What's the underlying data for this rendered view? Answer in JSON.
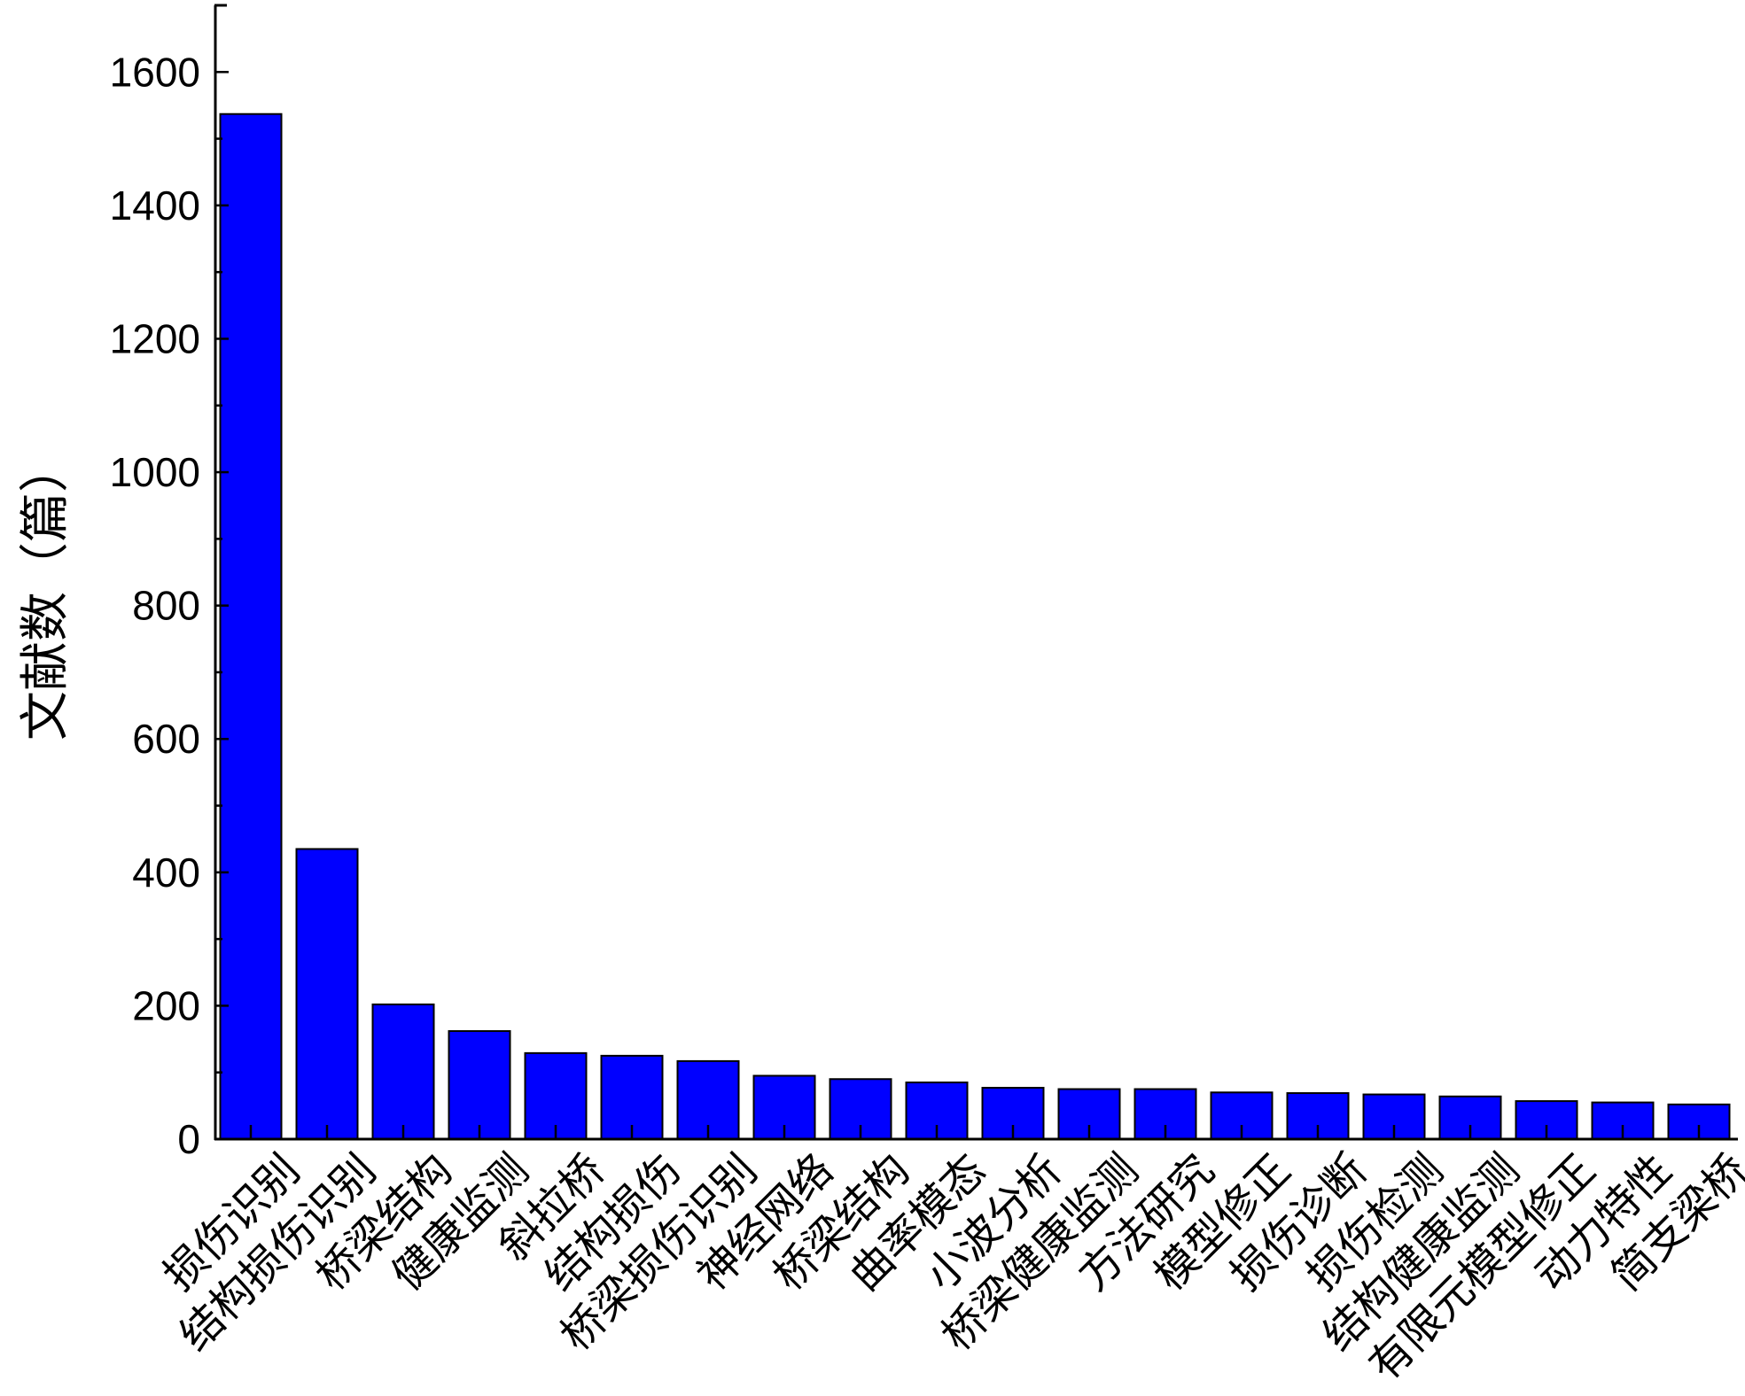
{
  "chart_data": {
    "type": "bar",
    "title": "",
    "xlabel": "",
    "ylabel": "文献数（篇）",
    "ylim": [
      0,
      1700
    ],
    "yticks": [
      0,
      200,
      400,
      600,
      800,
      1000,
      1200,
      1400,
      1600
    ],
    "grid": false,
    "legend": "none",
    "bar_color": "#0000ff",
    "categories": [
      "损伤识别",
      "结构损伤识别",
      "桥梁结构",
      "健康监测",
      "斜拉桥",
      "结构损伤",
      "桥梁损伤识别",
      "神经网络",
      "桥梁结构",
      "曲率模态",
      "小波分析",
      "桥梁健康监测",
      "方法研究",
      "模型修正",
      "损伤诊断",
      "损伤检测",
      "结构健康监测",
      "有限元模型修正",
      "动力特性",
      "简支梁桥"
    ],
    "values": [
      1537,
      435,
      202,
      162,
      129,
      125,
      117,
      95,
      90,
      85,
      77,
      75,
      75,
      70,
      69,
      67,
      64,
      57,
      55,
      52
    ]
  }
}
